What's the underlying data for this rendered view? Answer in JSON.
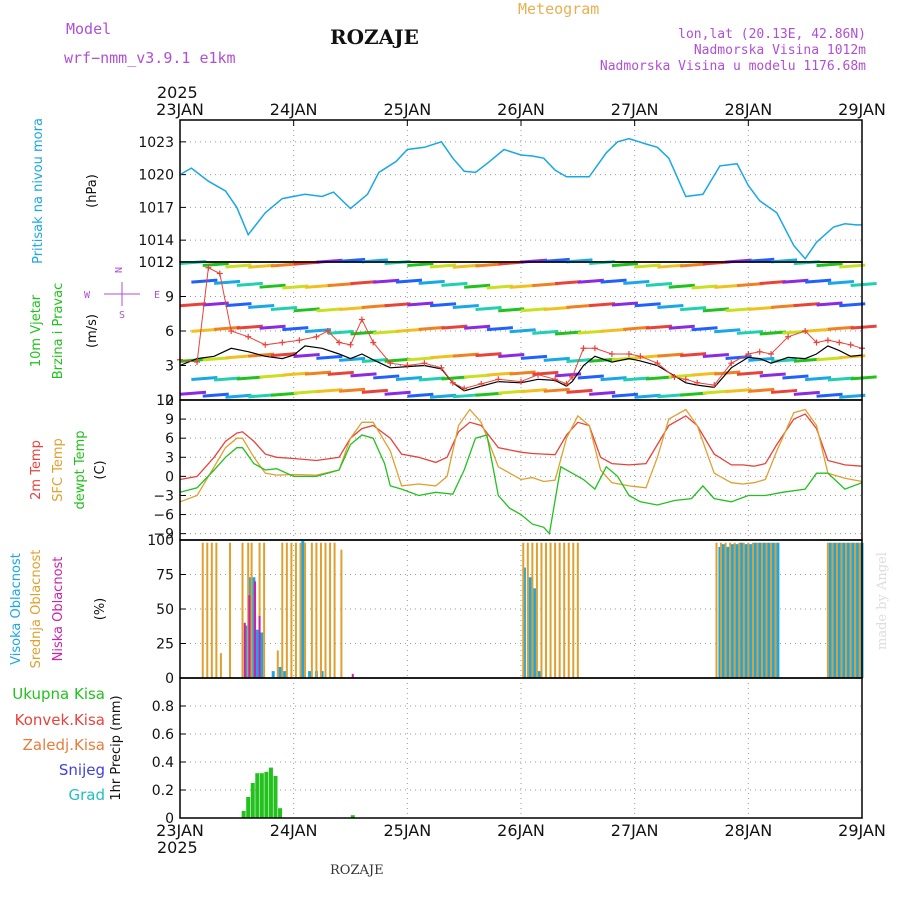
{
  "header": {
    "model_label": "Model",
    "model_name": "wrf−nmm_v3.9.1  e1km",
    "station": "ROZAJE",
    "product": "Meteogram",
    "lonlat": "lon,lat (20.13E, 42.86N)",
    "elevation": "Nadmorska Visina 1012m",
    "model_elevation": "Nadmorska Visina u modelu 1176.68m",
    "year_top": "2025",
    "year_bottom": "2025",
    "footer_station": "ROZAJE",
    "credit": "made by Angel"
  },
  "colors": {
    "pressure": "#1aa7e6",
    "temp2m": "#e8433a",
    "sfc_temp": "#e0a030",
    "dewpt": "#22c11e",
    "wind_obs": "#e8433a",
    "wind_line": "#000000",
    "cloud_high": "#1aa7e6",
    "cloud_mid": "#e0a030",
    "cloud_low": "#cc22aa",
    "precip_total": "#22c11e",
    "grid": "#999999",
    "header_purple": "#b04fd6",
    "header_orange": "#e8b050"
  },
  "chart_data": [
    {
      "type": "line",
      "title": "Pritisak na nivou mora",
      "ylabel": "(hPa)",
      "x_days": [
        "23JAN",
        "24JAN",
        "25JAN",
        "26JAN",
        "27JAN",
        "28JAN",
        "29JAN"
      ],
      "ylim": [
        1012,
        1025
      ],
      "yticks": [
        "1023",
        "1020",
        "1017",
        "1014",
        "1012"
      ],
      "grid": true,
      "series": [
        {
          "name": "Pritisak na nivou mora",
          "x": [
            0,
            0.1,
            0.25,
            0.4,
            0.5,
            0.6,
            0.75,
            0.9,
            1.1,
            1.25,
            1.35,
            1.5,
            1.65,
            1.75,
            1.9,
            2.0,
            2.15,
            2.3,
            2.4,
            2.5,
            2.6,
            2.7,
            2.85,
            3.0,
            3.1,
            3.2,
            3.3,
            3.4,
            3.6,
            3.75,
            3.85,
            3.95,
            4.1,
            4.2,
            4.3,
            4.45,
            4.6,
            4.75,
            4.9,
            5.0,
            5.1,
            5.25,
            5.4,
            5.5,
            5.6,
            5.75,
            5.85,
            5.95,
            6.0
          ],
          "values": [
            1020.0,
            1020.6,
            1019.4,
            1018.5,
            1017.0,
            1014.5,
            1016.5,
            1017.8,
            1018.2,
            1018.0,
            1018.4,
            1016.9,
            1018.2,
            1020.2,
            1021.2,
            1022.3,
            1022.5,
            1023.0,
            1021.5,
            1020.3,
            1020.2,
            1021.0,
            1022.3,
            1021.8,
            1021.7,
            1021.5,
            1020.4,
            1019.8,
            1019.8,
            1022.0,
            1023.0,
            1023.3,
            1022.8,
            1022.5,
            1021.5,
            1018.0,
            1018.2,
            1020.8,
            1021.0,
            1019.0,
            1017.6,
            1016.5,
            1013.5,
            1012.3,
            1013.8,
            1015.2,
            1015.5,
            1015.4,
            1015.4
          ]
        }
      ]
    },
    {
      "type": "line",
      "title": "10m Vjetar Brzina i Pravac",
      "ylabel": "(m/s)",
      "x_days": [
        "23JAN",
        "24JAN",
        "25JAN",
        "26JAN",
        "27JAN",
        "28JAN",
        "29JAN"
      ],
      "ylim": [
        0,
        12
      ],
      "yticks": [
        "12",
        "9",
        "6",
        "3",
        "0"
      ],
      "grid": true,
      "compass": [
        "N",
        "E",
        "S",
        "W"
      ],
      "series": [
        {
          "name": "wind speed",
          "x": [
            0,
            0.15,
            0.3,
            0.45,
            0.6,
            0.75,
            0.9,
            1.0,
            1.1,
            1.25,
            1.4,
            1.5,
            1.6,
            1.7,
            1.85,
            2.0,
            2.15,
            2.3,
            2.4,
            2.5,
            2.65,
            2.8,
            3.0,
            3.15,
            3.3,
            3.4,
            3.45,
            3.55,
            3.65,
            3.8,
            3.95,
            4.05,
            4.2,
            4.35,
            4.45,
            4.55,
            4.7,
            4.85,
            5.0,
            5.1,
            5.2,
            5.35,
            5.5,
            5.6,
            5.7,
            5.8,
            5.9,
            6.0
          ],
          "values": [
            3.0,
            3.6,
            3.8,
            4.5,
            4.2,
            3.8,
            3.6,
            3.9,
            4.7,
            4.5,
            4.0,
            3.6,
            4.0,
            3.5,
            2.8,
            2.9,
            3.0,
            2.7,
            1.5,
            0.8,
            1.2,
            1.6,
            1.5,
            1.8,
            1.7,
            1.2,
            1.6,
            3.0,
            3.8,
            3.3,
            3.6,
            3.4,
            3.0,
            2.1,
            1.5,
            1.3,
            1.1,
            2.8,
            3.7,
            3.6,
            3.2,
            3.7,
            3.6,
            4.0,
            4.7,
            4.3,
            3.8,
            3.9
          ]
        },
        {
          "name": "wind gust",
          "x": [
            0,
            0.15,
            0.25,
            0.35,
            0.45,
            0.6,
            0.75,
            0.9,
            1.05,
            1.2,
            1.3,
            1.4,
            1.5,
            1.6,
            1.7,
            1.85,
            2.0,
            2.15,
            2.3,
            2.4,
            2.5,
            2.65,
            2.8,
            3.0,
            3.15,
            3.3,
            3.4,
            3.45,
            3.55,
            3.65,
            3.8,
            3.95,
            4.05,
            4.2,
            4.35,
            4.45,
            4.55,
            4.7,
            4.85,
            5.0,
            5.1,
            5.2,
            5.35,
            5.5,
            5.6,
            5.7,
            5.8,
            5.9,
            6.0
          ],
          "values": [
            3.5,
            3.3,
            11.5,
            11.0,
            6.0,
            5.5,
            4.8,
            5.0,
            5.2,
            5.5,
            6.0,
            5.0,
            4.8,
            7.0,
            5.0,
            3.2,
            3.0,
            3.2,
            2.8,
            1.5,
            1.0,
            1.4,
            1.8,
            1.6,
            2.2,
            1.8,
            1.4,
            2.0,
            4.5,
            4.5,
            4.0,
            4.0,
            3.8,
            3.2,
            2.0,
            1.8,
            1.5,
            1.3,
            3.2,
            4.0,
            4.2,
            4.0,
            5.5,
            6.0,
            5.0,
            5.2,
            5.0,
            4.8,
            4.5
          ]
        }
      ]
    },
    {
      "type": "line",
      "title": "2m Temp / SFC Temp / dewpt Temp",
      "ylabel": "(C)",
      "x_days": [
        "23JAN",
        "24JAN",
        "25JAN",
        "26JAN",
        "27JAN",
        "28JAN",
        "29JAN"
      ],
      "ylim": [
        -10,
        12
      ],
      "yticks": [
        "12",
        "9",
        "6",
        "3",
        "0",
        "−3",
        "−6",
        "−9"
      ],
      "grid": true,
      "series": [
        {
          "name": "2m Temp",
          "x": [
            0,
            0.15,
            0.3,
            0.4,
            0.5,
            0.55,
            0.65,
            0.75,
            0.85,
            1.0,
            1.2,
            1.4,
            1.5,
            1.6,
            1.7,
            1.85,
            1.95,
            2.1,
            2.25,
            2.35,
            2.45,
            2.55,
            2.65,
            2.8,
            3.0,
            3.1,
            3.2,
            3.3,
            3.4,
            3.5,
            3.6,
            3.7,
            3.8,
            3.95,
            4.1,
            4.2,
            4.3,
            4.45,
            4.55,
            4.7,
            4.85,
            4.95,
            5.05,
            5.15,
            5.25,
            5.4,
            5.5,
            5.6,
            5.7,
            5.85,
            6.0
          ],
          "values": [
            -0.5,
            0.0,
            3.0,
            5.5,
            6.8,
            7.0,
            5.5,
            3.5,
            3.0,
            2.8,
            2.5,
            3.0,
            6.0,
            7.5,
            8.0,
            6.0,
            3.5,
            3.0,
            2.2,
            3.0,
            7.0,
            8.5,
            8.0,
            4.5,
            3.8,
            3.6,
            3.5,
            3.4,
            6.5,
            8.5,
            8.0,
            3.0,
            2.0,
            1.8,
            2.0,
            5.0,
            8.0,
            9.5,
            8.0,
            3.5,
            1.8,
            1.8,
            1.6,
            2.0,
            5.0,
            9.0,
            9.8,
            7.5,
            2.5,
            1.8,
            1.6
          ]
        },
        {
          "name": "SFC Temp",
          "x": [
            0,
            0.15,
            0.3,
            0.4,
            0.5,
            0.55,
            0.65,
            0.75,
            0.85,
            1.0,
            1.2,
            1.4,
            1.5,
            1.6,
            1.7,
            1.85,
            1.95,
            2.1,
            2.25,
            2.35,
            2.45,
            2.55,
            2.65,
            2.8,
            3.0,
            3.1,
            3.2,
            3.3,
            3.4,
            3.5,
            3.6,
            3.7,
            3.8,
            3.95,
            4.1,
            4.2,
            4.3,
            4.45,
            4.55,
            4.7,
            4.85,
            4.95,
            5.05,
            5.15,
            5.25,
            5.4,
            5.5,
            5.6,
            5.7,
            5.85,
            6.0
          ],
          "values": [
            -4.0,
            -3.0,
            1.5,
            4.5,
            6.0,
            6.0,
            3.0,
            0.5,
            0.2,
            0.3,
            0.2,
            1.0,
            6.0,
            8.5,
            8.5,
            4.0,
            -1.5,
            -1.2,
            -1.5,
            0.0,
            8.0,
            10.5,
            8.5,
            1.5,
            -0.5,
            -0.2,
            -0.8,
            -0.6,
            6.0,
            9.5,
            8.0,
            1.0,
            -1.0,
            -1.5,
            -1.8,
            3.0,
            9.0,
            10.5,
            8.0,
            0.5,
            -1.0,
            -1.2,
            -1.0,
            -0.5,
            4.0,
            10.0,
            10.5,
            8.0,
            0.5,
            -0.3,
            -0.8
          ]
        },
        {
          "name": "dewpt Temp",
          "x": [
            0,
            0.15,
            0.3,
            0.4,
            0.5,
            0.55,
            0.65,
            0.75,
            0.85,
            1.0,
            1.2,
            1.4,
            1.5,
            1.6,
            1.7,
            1.8,
            1.85,
            1.95,
            2.1,
            2.25,
            2.4,
            2.5,
            2.6,
            2.7,
            2.8,
            2.9,
            3.0,
            3.1,
            3.2,
            3.25,
            3.35,
            3.45,
            3.55,
            3.65,
            3.75,
            3.85,
            3.95,
            4.05,
            4.2,
            4.35,
            4.5,
            4.6,
            4.7,
            4.85,
            5.0,
            5.15,
            5.3,
            5.5,
            5.6,
            5.7,
            5.85,
            6.0
          ],
          "values": [
            -2.5,
            -1.8,
            1.0,
            3.0,
            4.5,
            4.5,
            2.0,
            1.0,
            1.2,
            0.0,
            0.0,
            1.0,
            5.0,
            6.5,
            6.0,
            2.0,
            -1.5,
            -2.0,
            -3.0,
            -2.5,
            -2.8,
            1.0,
            6.0,
            6.5,
            -3.0,
            -5.0,
            -6.0,
            -7.5,
            -8.0,
            -9.0,
            1.5,
            0.5,
            -0.5,
            -2.0,
            1.5,
            0.0,
            -3.0,
            -4.0,
            -4.5,
            -3.8,
            -3.5,
            -1.5,
            -3.5,
            -4.0,
            -3.0,
            -3.0,
            -2.5,
            -2.0,
            0.5,
            0.5,
            -2.0,
            -1.0
          ]
        }
      ]
    },
    {
      "type": "bar",
      "title": "Visoka Oblacnost / Srednja Oblacnost / Niska Oblacnost",
      "ylabel": "(%)",
      "x_days": [
        "23JAN",
        "24JAN",
        "25JAN",
        "26JAN",
        "27JAN",
        "28JAN",
        "29JAN"
      ],
      "ylim": [
        0,
        100
      ],
      "yticks": [
        "100",
        "75",
        "50",
        "25",
        "0"
      ],
      "grid": true,
      "series": [
        {
          "name": "Visoka Oblacnost",
          "x": [
            0.58,
            0.62,
            0.65,
            0.68,
            0.72,
            0.82,
            0.88,
            0.92,
            1.08,
            1.14,
            1.2,
            1.25,
            3.03,
            3.08,
            3.12,
            3.16,
            4.75,
            4.78,
            4.82,
            4.86,
            4.9,
            4.94,
            4.98,
            5.02,
            5.06,
            5.1,
            5.14,
            5.18,
            5.22,
            5.26,
            5.72,
            5.76,
            5.8,
            5.84,
            5.88,
            5.92,
            5.96,
            6.0
          ],
          "values": [
            38,
            73,
            73,
            35,
            33,
            5,
            8,
            5,
            100,
            5,
            5,
            5,
            80,
            73,
            65,
            5,
            95,
            97,
            95,
            97,
            97,
            98,
            97,
            97,
            98,
            98,
            98,
            98,
            98,
            98,
            98,
            98,
            98,
            98,
            98,
            98,
            98,
            98
          ]
        },
        {
          "name": "Srednja Oblacnost",
          "x": [
            0.2,
            0.24,
            0.28,
            0.32,
            0.36,
            0.44,
            0.55,
            0.6,
            0.63,
            0.7,
            0.74,
            0.86,
            0.9,
            0.94,
            0.98,
            1.02,
            1.06,
            1.1,
            1.16,
            1.2,
            1.24,
            1.28,
            1.32,
            1.36,
            1.42,
            3.02,
            3.06,
            3.1,
            3.14,
            3.18,
            3.22,
            3.26,
            3.3,
            3.34,
            3.38,
            3.42,
            3.46,
            3.5,
            4.72,
            4.76,
            4.8,
            4.84,
            4.88,
            4.92,
            4.96,
            5.0,
            5.04,
            5.08,
            5.12,
            5.16,
            5.2,
            5.24,
            5.7,
            5.74,
            5.78,
            5.82,
            5.86,
            5.9,
            5.94,
            5.98
          ],
          "values": [
            98,
            98,
            98,
            98,
            18,
            98,
            98,
            98,
            98,
            98,
            98,
            20,
            98,
            98,
            98,
            98,
            98,
            98,
            98,
            98,
            98,
            98,
            98,
            98,
            93,
            98,
            98,
            98,
            98,
            98,
            98,
            98,
            98,
            98,
            98,
            98,
            98,
            98,
            98,
            98,
            98,
            98,
            98,
            98,
            98,
            98,
            98,
            98,
            98,
            98,
            98,
            98,
            98,
            98,
            98,
            98,
            98,
            98,
            98,
            98
          ]
        },
        {
          "name": "Niska Oblacnost",
          "x": [
            0.57,
            0.61,
            0.66,
            0.7,
            1.52
          ],
          "values": [
            40,
            60,
            70,
            45,
            3
          ]
        }
      ]
    },
    {
      "type": "bar",
      "title": "Ukupna Kisa / Konvek.Kisa / Zaledj.Kisa / Snijeg / Grad",
      "ylabel": "1hr Precip (mm)",
      "x_days": [
        "23JAN",
        "24JAN",
        "25JAN",
        "26JAN",
        "27JAN",
        "28JAN",
        "29JAN"
      ],
      "ylim": [
        0,
        1.0
      ],
      "yticks": [
        "0.8",
        "0.6",
        "0.4",
        "0.2",
        "0"
      ],
      "grid": true,
      "legend": [
        "Ukupna Kisa",
        "Konvek.Kisa",
        "Zaledj.Kisa",
        "Snijeg",
        "Grad"
      ],
      "series": [
        {
          "name": "Ukupna Kisa",
          "x": [
            0.56,
            0.6,
            0.64,
            0.68,
            0.72,
            0.76,
            0.8,
            0.84,
            0.88,
            1.52
          ],
          "values": [
            0.05,
            0.15,
            0.25,
            0.32,
            0.32,
            0.33,
            0.36,
            0.3,
            0.07,
            0.02
          ]
        }
      ]
    }
  ]
}
